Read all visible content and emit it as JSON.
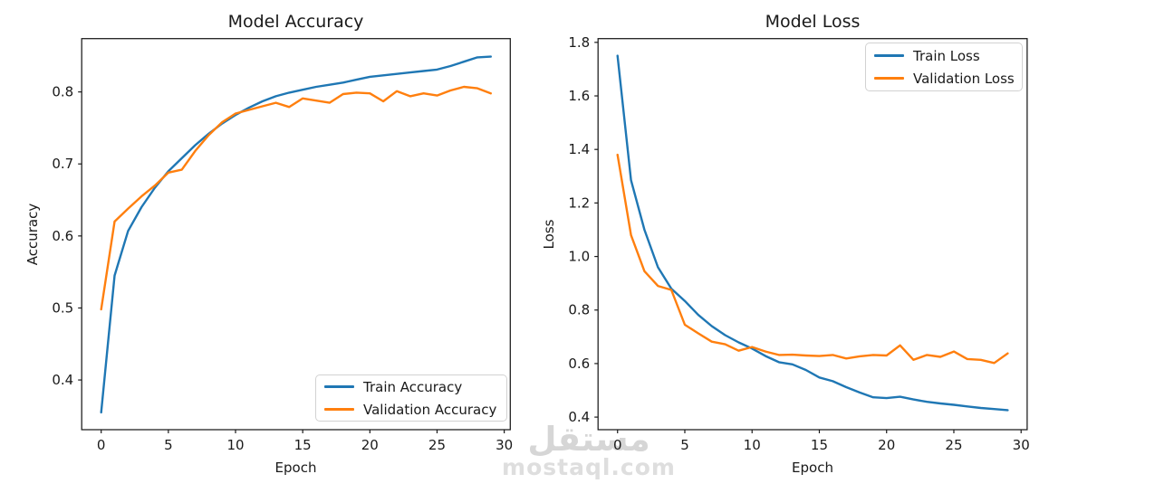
{
  "watermark": {
    "arabic": "مستقل",
    "domain": "mostaql.com",
    "color": "#d6d6d6"
  },
  "chart_data": [
    {
      "type": "line",
      "title": "Model Accuracy",
      "xlabel": "Epoch",
      "ylabel": "Accuracy",
      "x": [
        0,
        1,
        2,
        3,
        4,
        5,
        6,
        7,
        8,
        9,
        10,
        11,
        12,
        13,
        14,
        15,
        16,
        17,
        18,
        19,
        20,
        21,
        22,
        23,
        24,
        25,
        26,
        27,
        28,
        29
      ],
      "series": [
        {
          "name": "Train Accuracy",
          "color": "#1f77b4",
          "values": [
            0.355,
            0.545,
            0.607,
            0.64,
            0.667,
            0.69,
            0.708,
            0.726,
            0.742,
            0.756,
            0.768,
            0.778,
            0.787,
            0.794,
            0.799,
            0.803,
            0.807,
            0.81,
            0.813,
            0.817,
            0.821,
            0.823,
            0.825,
            0.827,
            0.829,
            0.831,
            0.836,
            0.842,
            0.848,
            0.849
          ]
        },
        {
          "name": "Validation Accuracy",
          "color": "#ff7f0e",
          "values": [
            0.498,
            0.62,
            0.638,
            0.655,
            0.67,
            0.688,
            0.692,
            0.718,
            0.74,
            0.758,
            0.77,
            0.775,
            0.78,
            0.785,
            0.779,
            0.791,
            0.788,
            0.785,
            0.797,
            0.799,
            0.798,
            0.787,
            0.801,
            0.794,
            0.798,
            0.795,
            0.802,
            0.807,
            0.805,
            0.798
          ]
        }
      ],
      "xlim": [
        -1.45,
        30.45
      ],
      "ylim": [
        0.331,
        0.874
      ],
      "xticks": [
        0,
        5,
        10,
        15,
        20,
        25,
        30
      ],
      "yticks": [
        0.4,
        0.5,
        0.6,
        0.7,
        0.8
      ],
      "ytick_decimals": 1,
      "grid": false,
      "legend_position": "lower-right"
    },
    {
      "type": "line",
      "title": "Model Loss",
      "xlabel": "Epoch",
      "ylabel": "Loss",
      "x": [
        0,
        1,
        2,
        3,
        4,
        5,
        6,
        7,
        8,
        9,
        10,
        11,
        12,
        13,
        14,
        15,
        16,
        17,
        18,
        19,
        20,
        21,
        22,
        23,
        24,
        25,
        26,
        27,
        28,
        29
      ],
      "series": [
        {
          "name": "Train Loss",
          "color": "#1f77b4",
          "values": [
            1.75,
            1.285,
            1.1,
            0.96,
            0.88,
            0.834,
            0.782,
            0.74,
            0.706,
            0.679,
            0.656,
            0.628,
            0.605,
            0.597,
            0.576,
            0.548,
            0.534,
            0.512,
            0.492,
            0.474,
            0.471,
            0.476,
            0.466,
            0.457,
            0.451,
            0.446,
            0.44,
            0.434,
            0.43,
            0.426
          ]
        },
        {
          "name": "Validation Loss",
          "color": "#ff7f0e",
          "values": [
            1.38,
            1.08,
            0.945,
            0.89,
            0.875,
            0.745,
            0.713,
            0.682,
            0.672,
            0.648,
            0.662,
            0.645,
            0.632,
            0.633,
            0.63,
            0.628,
            0.632,
            0.619,
            0.627,
            0.632,
            0.63,
            0.668,
            0.614,
            0.632,
            0.625,
            0.645,
            0.617,
            0.614,
            0.602,
            0.638
          ]
        }
      ],
      "xlim": [
        -1.45,
        30.45
      ],
      "ylim": [
        0.353,
        1.814
      ],
      "xticks": [
        0,
        5,
        10,
        15,
        20,
        25,
        30
      ],
      "yticks": [
        0.4,
        0.6,
        0.8,
        1.0,
        1.2,
        1.4,
        1.6,
        1.8
      ],
      "ytick_decimals": 1,
      "grid": false,
      "legend_position": "upper-right"
    }
  ]
}
